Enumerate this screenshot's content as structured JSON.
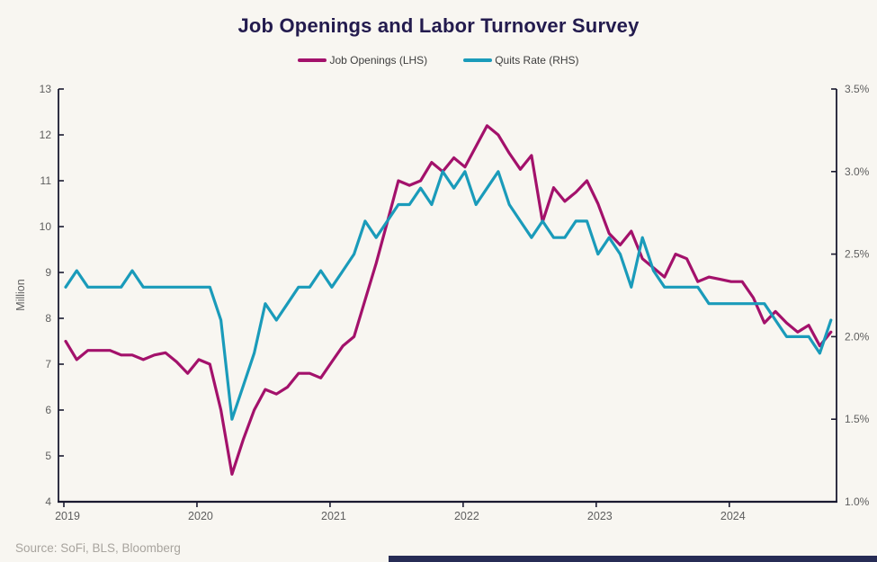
{
  "header": {
    "title": "Job Openings and Labor Turnover Survey"
  },
  "legend": [
    {
      "label": "Job Openings (LHS)",
      "color": "#a3116b"
    },
    {
      "label": "Quits Rate (RHS)",
      "color": "#1a9bba"
    }
  ],
  "source_note": "Source: SoFi, BLS, Bloomberg",
  "colors": {
    "background": "#f8f6f1",
    "title_text": "#231b4e",
    "axis_line": "#1a1a30",
    "tick_text": "#5e5e5e",
    "legend_text": "#3d3d3d",
    "source_text": "#a8a49e",
    "footer_bar": "#272c55",
    "job_openings_line": "#a3116b",
    "quits_rate_line": "#1a9bba"
  },
  "chart_data": {
    "type": "line",
    "title": "Job Openings and Labor Turnover Survey",
    "grid": false,
    "legend_position": "top",
    "x_monthly_from": "2019-01",
    "x_monthly_to": "2024-10",
    "x_tick_labels": [
      "2019",
      "2020",
      "2021",
      "2022",
      "2023",
      "2024"
    ],
    "x_tick_month_index": [
      0,
      12,
      24,
      36,
      48,
      60
    ],
    "left_axis": {
      "label": "Million",
      "min": 4,
      "max": 13,
      "tick_values": [
        4,
        5,
        6,
        7,
        8,
        9,
        10,
        11,
        12,
        13
      ],
      "tick_labels": [
        "4",
        "5",
        "6",
        "7",
        "8",
        "9",
        "10",
        "11",
        "12",
        "13"
      ]
    },
    "right_axis": {
      "min": 1.0,
      "max": 3.5,
      "tick_values": [
        1.0,
        1.5,
        2.0,
        2.5,
        3.0,
        3.5
      ],
      "tick_labels": [
        "1.0%",
        "1.5%",
        "2.0%",
        "2.5%",
        "3.0%",
        "3.5%"
      ]
    },
    "series": [
      {
        "name": "Job Openings (LHS)",
        "axis": "left",
        "unit": "million",
        "color": "#a3116b",
        "values": [
          7.5,
          7.1,
          7.3,
          7.3,
          7.3,
          7.2,
          7.2,
          7.1,
          7.2,
          7.25,
          7.05,
          6.8,
          7.1,
          7.0,
          6.0,
          4.6,
          5.35,
          6.0,
          6.45,
          6.35,
          6.5,
          6.8,
          6.8,
          6.7,
          7.05,
          7.4,
          7.6,
          8.4,
          9.2,
          10.1,
          11.0,
          10.9,
          11.0,
          11.4,
          11.2,
          11.5,
          11.3,
          11.75,
          12.2,
          12.0,
          11.6,
          11.25,
          11.55,
          10.1,
          10.85,
          10.55,
          10.75,
          11.0,
          10.5,
          9.85,
          9.6,
          9.9,
          9.3,
          9.1,
          8.9,
          9.4,
          9.3,
          8.8,
          8.9,
          8.85,
          8.8,
          8.8,
          8.45,
          7.9,
          8.15,
          7.9,
          7.7,
          7.85,
          7.4,
          7.7
        ]
      },
      {
        "name": "Quits Rate (RHS)",
        "axis": "right",
        "unit": "percent",
        "color": "#1a9bba",
        "values": [
          2.3,
          2.4,
          2.3,
          2.3,
          2.3,
          2.3,
          2.4,
          2.3,
          2.3,
          2.3,
          2.3,
          2.3,
          2.3,
          2.3,
          2.1,
          1.5,
          1.7,
          1.9,
          2.2,
          2.1,
          2.2,
          2.3,
          2.3,
          2.4,
          2.3,
          2.4,
          2.5,
          2.7,
          2.6,
          2.7,
          2.8,
          2.8,
          2.9,
          2.8,
          3.0,
          2.9,
          3.0,
          2.8,
          2.9,
          3.0,
          2.8,
          2.7,
          2.6,
          2.7,
          2.6,
          2.6,
          2.7,
          2.7,
          2.5,
          2.6,
          2.5,
          2.3,
          2.6,
          2.4,
          2.3,
          2.3,
          2.3,
          2.3,
          2.2,
          2.2,
          2.2,
          2.2,
          2.2,
          2.2,
          2.1,
          2.0,
          2.0,
          2.0,
          1.9,
          2.1
        ]
      }
    ]
  }
}
